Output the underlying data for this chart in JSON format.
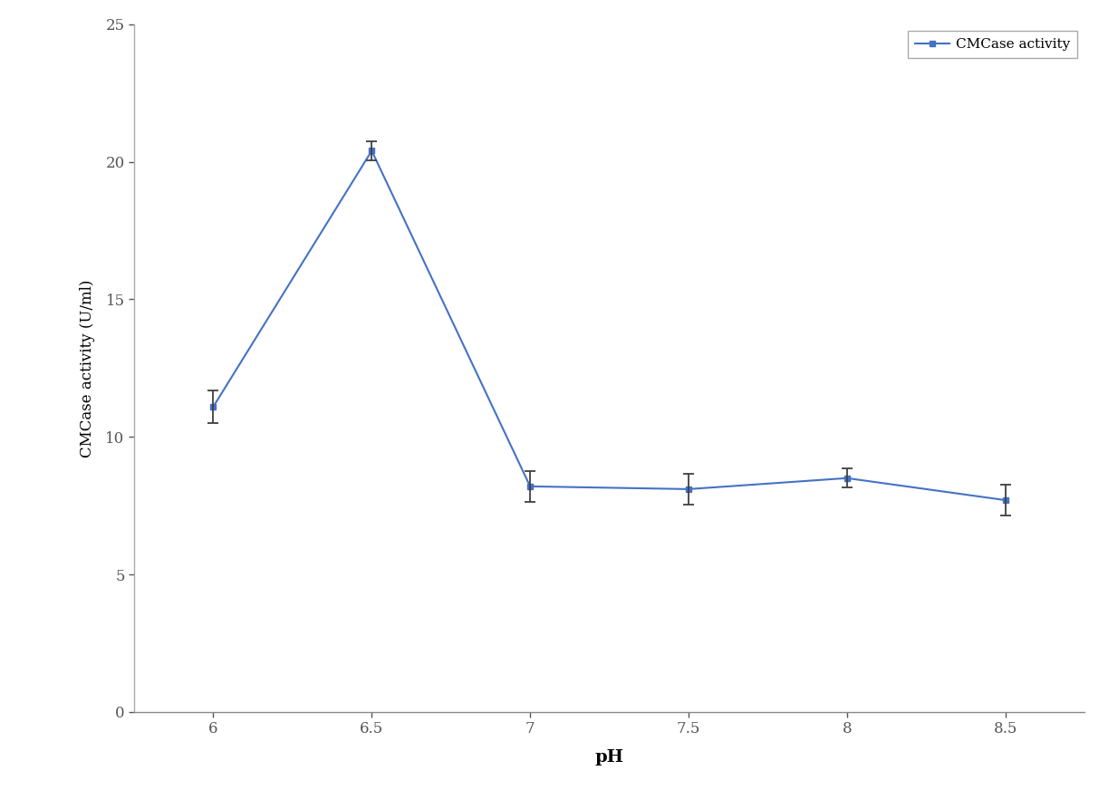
{
  "x": [
    6,
    6.5,
    7,
    7.5,
    8,
    8.5
  ],
  "y": [
    11.1,
    20.4,
    8.2,
    8.1,
    8.5,
    7.7
  ],
  "yerr": [
    0.6,
    0.35,
    0.55,
    0.55,
    0.35,
    0.55
  ],
  "xlabel": "pH",
  "ylabel": "CMCase activity (U/ml)",
  "xlim": [
    5.75,
    8.75
  ],
  "ylim": [
    0,
    25
  ],
  "yticks": [
    0,
    5,
    10,
    15,
    20,
    25
  ],
  "xticks": [
    6,
    6.5,
    7,
    7.5,
    8,
    8.5
  ],
  "line_color": "#4472C4",
  "error_color": "#404040",
  "marker": "s",
  "marker_size": 4,
  "marker_color": "#4472C4",
  "line_width": 1.5,
  "legend_label": "CMCase activity",
  "xlabel_fontsize": 14,
  "ylabel_fontsize": 12,
  "tick_fontsize": 12,
  "legend_fontsize": 11,
  "figsize": [
    12.34,
    8.93
  ],
  "dpi": 100,
  "background_color": "#ffffff",
  "spine_color_lr": "#aaaaaa",
  "spine_color_bt": "#888888"
}
